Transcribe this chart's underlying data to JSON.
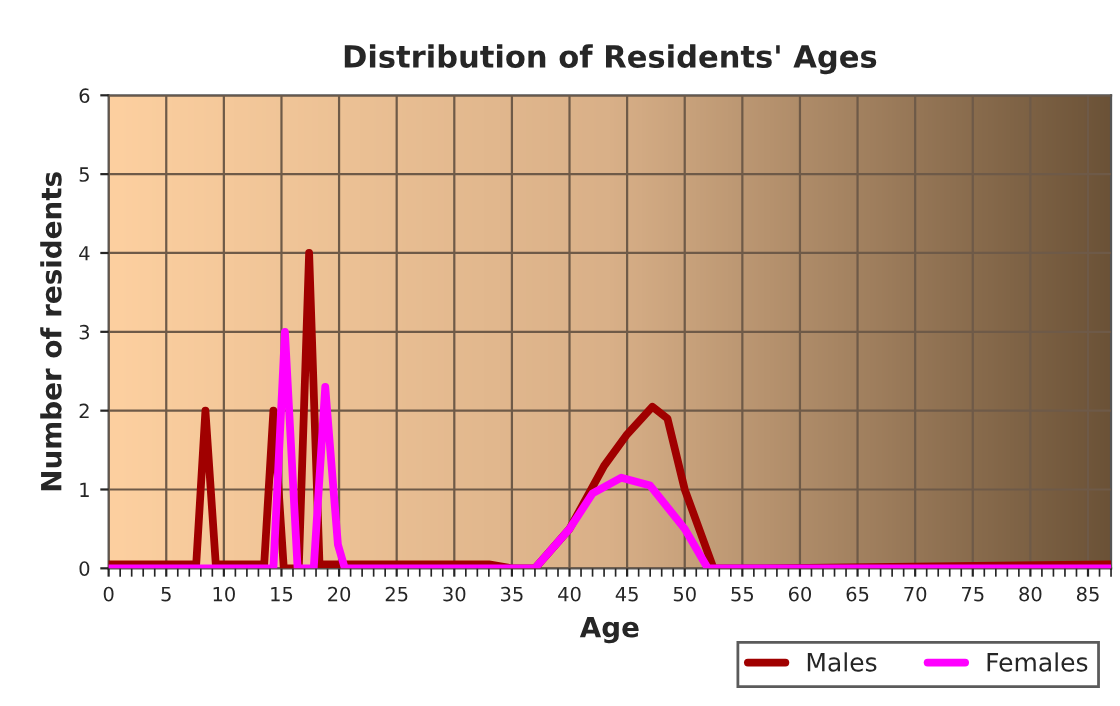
{
  "chart_data": {
    "type": "line",
    "title": "Distribution of Residents' Ages",
    "xlabel": "Age",
    "ylabel": "Number of residents",
    "xlim": [
      0,
      87
    ],
    "xticks": [
      0,
      5,
      10,
      15,
      20,
      25,
      30,
      35,
      40,
      45,
      50,
      55,
      60,
      65,
      70,
      75,
      80,
      85
    ],
    "ylim": [
      0,
      6
    ],
    "yticks": [
      0,
      1,
      2,
      3,
      4,
      5,
      6
    ],
    "grid": true,
    "legend": "bottom right",
    "line_style": "solid",
    "marker": "none",
    "series": [
      {
        "name": "Males",
        "color": "#a00000",
        "x": [
          0,
          7,
          7.6,
          8.4,
          9.3,
          10,
          13.5,
          14.3,
          15.2,
          16.5,
          17.4,
          18.3,
          19,
          33,
          35,
          37,
          40,
          43,
          45,
          47.2,
          48.5,
          50,
          52.5,
          57,
          87
        ],
        "values": [
          0.05,
          0.05,
          0.05,
          2,
          0.05,
          0.05,
          0.05,
          2,
          0,
          0,
          4,
          0.05,
          0.05,
          0.05,
          0,
          0,
          0.5,
          1.3,
          1.7,
          2.05,
          1.9,
          1.0,
          0,
          0,
          0.05
        ]
      },
      {
        "name": "Females",
        "color": "#ff00ff",
        "x": [
          0,
          14.3,
          15.3,
          16.4,
          17.8,
          18.8,
          19.9,
          20.5,
          37,
          40,
          42,
          44.5,
          47,
          50,
          52,
          87
        ],
        "values": [
          0,
          0,
          3,
          0,
          0,
          2.3,
          0.3,
          0,
          0,
          0.5,
          0.95,
          1.15,
          1.05,
          0.5,
          0,
          0
        ]
      }
    ]
  }
}
